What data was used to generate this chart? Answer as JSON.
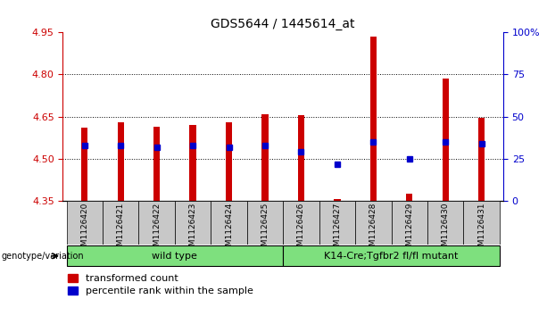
{
  "title": "GDS5644 / 1445614_at",
  "samples": [
    "GSM1126420",
    "GSM1126421",
    "GSM1126422",
    "GSM1126423",
    "GSM1126424",
    "GSM1126425",
    "GSM1126426",
    "GSM1126427",
    "GSM1126428",
    "GSM1126429",
    "GSM1126430",
    "GSM1126431"
  ],
  "red_values": [
    4.61,
    4.63,
    4.615,
    4.62,
    4.63,
    4.66,
    4.655,
    4.357,
    4.935,
    4.375,
    4.785,
    4.645
  ],
  "blue_percentiles": [
    33,
    33,
    32,
    33,
    32,
    33,
    29,
    22,
    35,
    25,
    35,
    34
  ],
  "ylim_left": [
    4.35,
    4.95
  ],
  "ylim_right": [
    0,
    100
  ],
  "yticks_left": [
    4.35,
    4.5,
    4.65,
    4.8,
    4.95
  ],
  "yticks_right": [
    0,
    25,
    50,
    75,
    100
  ],
  "ytick_labels_right": [
    "0",
    "25",
    "50",
    "75",
    "100%"
  ],
  "baseline": 4.35,
  "group1_label": "wild type",
  "group2_label": "K14-Cre;Tgfbr2 fl/fl mutant",
  "group_header": "genotype/variation",
  "red_color": "#CC0000",
  "blue_color": "#0000CC",
  "bar_width": 0.18,
  "legend_red": "transformed count",
  "legend_blue": "percentile rank within the sample",
  "tick_bg_color": "#C8C8C8",
  "title_color": "#000000",
  "left_axis_color": "#CC0000",
  "right_axis_color": "#0000CC",
  "group_green": "#7EE07E",
  "grid_lines": [
    4.5,
    4.65,
    4.8
  ],
  "figwidth": 6.13,
  "figheight": 3.63
}
